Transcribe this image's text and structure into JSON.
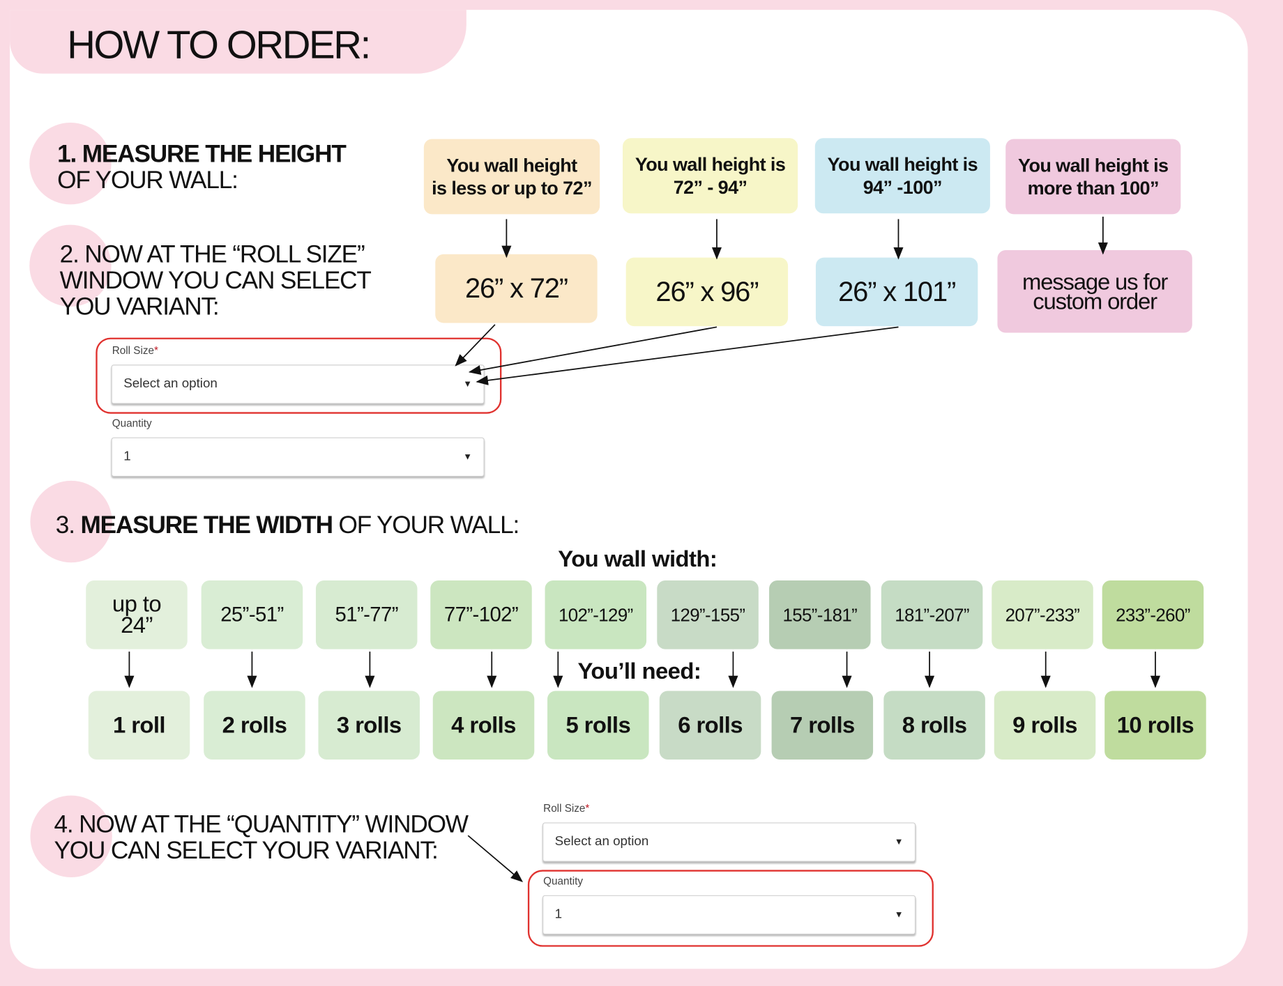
{
  "title": "HOW TO ORDER:",
  "steps": {
    "s1_bold": "1. MEASURE THE HEIGHT",
    "s1_rest": "OF YOUR WALL:",
    "s2_l1": "2. NOW AT THE “ROLL SIZE”",
    "s2_l2": "WINDOW YOU CAN SELECT",
    "s2_l3": "YOU VARIANT:",
    "s3_pre": "3.",
    "s3_bold": "MEASURE THE WIDTH",
    "s3_rest": "OF YOUR WALL:",
    "s4_l1": "4. NOW AT THE “QUANTITY” WINDOW",
    "s4_l2": "YOU CAN SELECT YOUR VARIANT:"
  },
  "height_options": [
    {
      "condition_l1": "You wall height",
      "condition_l2": "is less or up to 72”",
      "size": "26” x 72”",
      "color": "#fbe8c8"
    },
    {
      "condition_l1": "You wall height is",
      "condition_l2": "72” - 94”",
      "size": "26” x 96”",
      "color": "#f7f6c8"
    },
    {
      "condition_l1": "You wall height is",
      "condition_l2": "94” -100”",
      "size": "26” x 101”",
      "color": "#cce9f2"
    },
    {
      "condition_l1": "You wall height is",
      "condition_l2": "more than 100”",
      "size_l1": "message us for",
      "size_l2": "custom  order",
      "color": "#f0c9de"
    }
  ],
  "form1": {
    "roll_size_label": "Roll Size",
    "required_mark": "*",
    "roll_size_value": "Select an option",
    "quantity_label": "Quantity",
    "quantity_value": "1",
    "caret_icon": "caret-down-icon"
  },
  "form2": {
    "roll_size_label": "Roll Size",
    "required_mark": "*",
    "roll_size_value": "Select an option",
    "quantity_label": "Quantity",
    "quantity_value": "1",
    "caret_icon": "caret-down-icon"
  },
  "width_heading": "You wall width:",
  "need_heading": "You’ll need:",
  "width_options": [
    {
      "width": "up to 24”",
      "rolls": "1 roll",
      "color": "#e3f0dc"
    },
    {
      "width": "25”-51”",
      "rolls": "2 rolls",
      "color": "#d9edd4"
    },
    {
      "width": "51”-77”",
      "rolls": "3 rolls",
      "color": "#d7ebd1"
    },
    {
      "width": "77”-102”",
      "rolls": "4 rolls",
      "color": "#cce6c0"
    },
    {
      "width": "102”-129”",
      "rolls": "5 rolls",
      "color": "#c9e6c0"
    },
    {
      "width": "129”-155”",
      "rolls": "6 rolls",
      "color": "#c8dbc6"
    },
    {
      "width": "155”-181”",
      "rolls": "7 rolls",
      "color": "#b6cdb3"
    },
    {
      "width": "181”-207”",
      "rolls": "8 rolls",
      "color": "#c5dcc4"
    },
    {
      "width": "207”-233”",
      "rolls": "9 rolls",
      "color": "#d8ebc8"
    },
    {
      "width": "233”-260”",
      "rolls": "10 rolls",
      "color": "#bfdc9e"
    }
  ],
  "colors": {
    "background": "#fadbe4",
    "highlight": "#e0322f"
  }
}
